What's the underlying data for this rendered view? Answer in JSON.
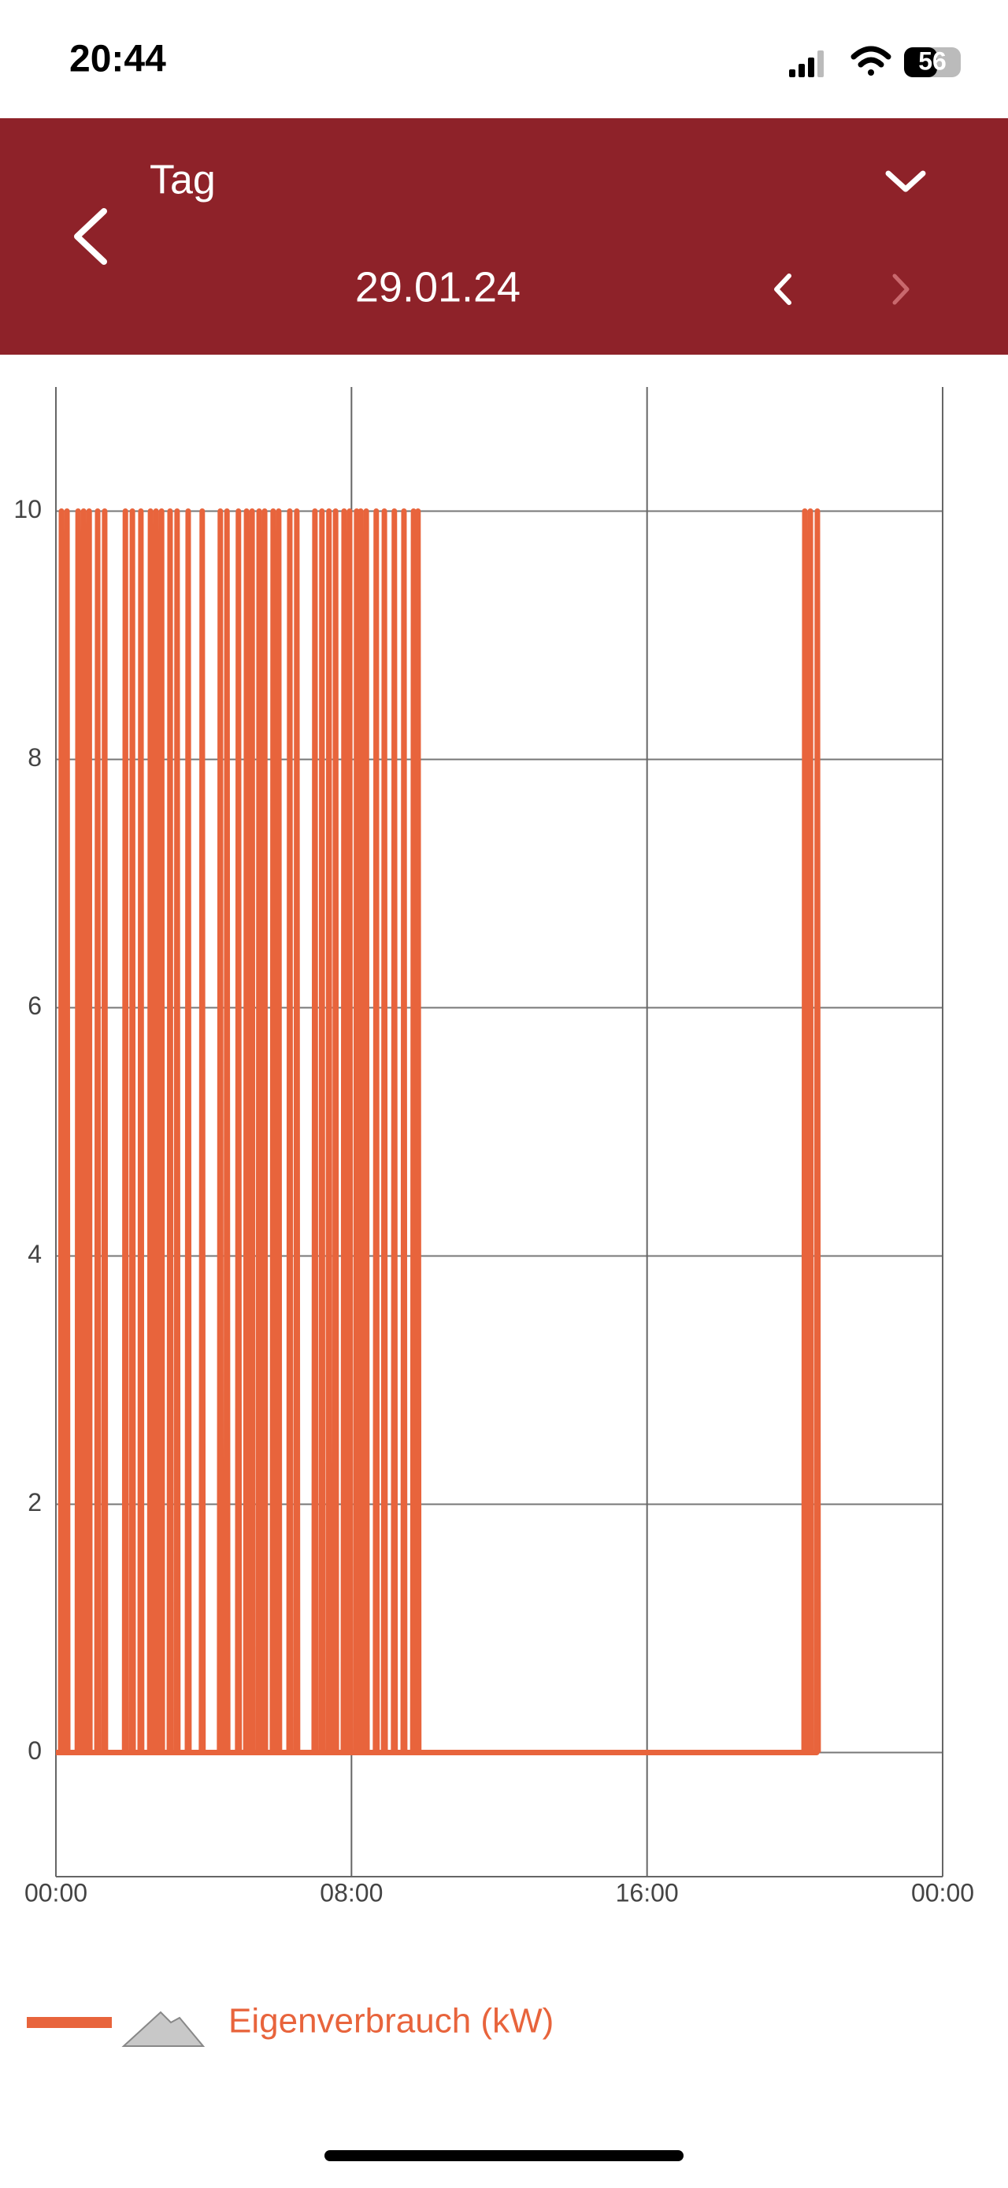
{
  "status_bar": {
    "time": "20:44",
    "battery": "56"
  },
  "header": {
    "title": "Tag",
    "date": "29.01.24"
  },
  "chart_data": {
    "type": "line",
    "x": [
      0,
      0.13,
      0.15,
      0.17,
      0.28,
      0.3,
      0.32,
      0.58,
      0.6,
      0.62,
      0.73,
      0.75,
      0.77,
      0.88,
      0.9,
      0.92,
      1.11,
      1.13,
      1.15,
      1.3,
      1.32,
      1.34,
      1.86,
      1.88,
      1.9,
      2.05,
      2.07,
      2.09,
      2.28,
      2.3,
      2.32,
      2.54,
      2.56,
      2.58,
      2.69,
      2.71,
      2.73,
      2.84,
      2.86,
      2.88,
      3.07,
      3.09,
      3.11,
      3.26,
      3.28,
      3.3,
      3.56,
      3.58,
      3.6,
      3.94,
      3.96,
      3.98,
      4.43,
      4.45,
      4.47,
      4.61,
      4.63,
      4.65,
      4.92,
      4.94,
      4.96,
      5.14,
      5.16,
      5.18,
      5.29,
      5.31,
      5.33,
      5.48,
      5.5,
      5.52,
      5.63,
      5.65,
      5.67,
      5.86,
      5.88,
      5.9,
      6.01,
      6.03,
      6.05,
      6.31,
      6.33,
      6.35,
      6.5,
      6.52,
      6.54,
      6.99,
      7.01,
      7.03,
      7.18,
      7.2,
      7.22,
      7.37,
      7.39,
      7.41,
      7.55,
      7.57,
      7.59,
      7.78,
      7.8,
      7.82,
      7.93,
      7.95,
      7.97,
      8.12,
      8.14,
      8.16,
      8.23,
      8.25,
      8.27,
      8.38,
      8.4,
      8.42,
      8.65,
      8.67,
      8.69,
      8.87,
      8.89,
      8.91,
      9.14,
      9.16,
      9.18,
      9.4,
      9.42,
      9.44,
      9.66,
      9.68,
      9.7,
      9.78,
      9.8,
      9.82,
      20.25,
      20.27,
      20.29,
      20.4,
      20.42,
      20.44,
      20.59,
      20.61,
      20.63
    ],
    "series": [
      {
        "name": "Eigenverbrauch (kW)",
        "color": "#e8643c",
        "values": [
          0,
          0,
          10,
          0,
          0,
          10,
          0,
          0,
          10,
          0,
          0,
          10,
          0,
          0,
          10,
          0,
          0,
          10,
          0,
          0,
          10,
          0,
          0,
          10,
          0,
          0,
          10,
          0,
          0,
          10,
          0,
          0,
          10,
          0,
          0,
          10,
          0,
          0,
          10,
          0,
          0,
          10,
          0,
          0,
          10,
          0,
          0,
          10,
          0,
          0,
          10,
          0,
          0,
          10,
          0,
          0,
          10,
          0,
          0,
          10,
          0,
          0,
          10,
          0,
          0,
          10,
          0,
          0,
          10,
          0,
          0,
          10,
          0,
          0,
          10,
          0,
          0,
          10,
          0,
          0,
          10,
          0,
          0,
          10,
          0,
          0,
          10,
          0,
          0,
          10,
          0,
          0,
          10,
          0,
          0,
          10,
          0,
          0,
          10,
          0,
          0,
          10,
          0,
          0,
          10,
          0,
          0,
          10,
          0,
          0,
          10,
          0,
          0,
          10,
          0,
          0,
          10,
          0,
          0,
          10,
          0,
          0,
          10,
          0,
          0,
          10,
          0,
          0,
          10,
          0,
          0,
          10,
          0,
          0,
          10,
          0,
          0,
          10,
          0
        ]
      }
    ],
    "xlim": [
      0,
      24
    ],
    "xticks": [
      {
        "value": 0,
        "label": "00:00"
      },
      {
        "value": 8,
        "label": "08:00"
      },
      {
        "value": 16,
        "label": "16:00"
      },
      {
        "value": 24,
        "label": "00:00"
      }
    ],
    "ylim": [
      -1,
      11
    ],
    "yticks": [
      0,
      2,
      4,
      6,
      8,
      10
    ],
    "grid": true
  }
}
